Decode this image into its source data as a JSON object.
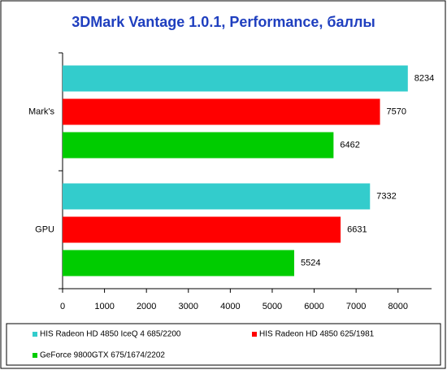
{
  "chart_data": {
    "type": "bar",
    "orientation": "horizontal",
    "title": "3DMark Vantage 1.0.1, Performance, баллы",
    "categories": [
      "Mark's",
      "GPU"
    ],
    "series": [
      {
        "name": "HIS Radeon HD 4850 IceQ 4 685/2200",
        "color": "#33cccc",
        "values": [
          8234,
          7332
        ]
      },
      {
        "name": "HIS Radeon HD 4850 625/1981",
        "color": "#ff0000",
        "values": [
          7570,
          6631
        ]
      },
      {
        "name": "GeForce 9800GTX 675/1674/2202",
        "color": "#00cc00",
        "values": [
          6462,
          5524
        ]
      }
    ],
    "xlim": [
      0,
      8800
    ],
    "xticks": [
      0,
      1000,
      2000,
      3000,
      4000,
      5000,
      6000,
      7000,
      8000
    ],
    "grid": false,
    "legend": "bottom"
  }
}
